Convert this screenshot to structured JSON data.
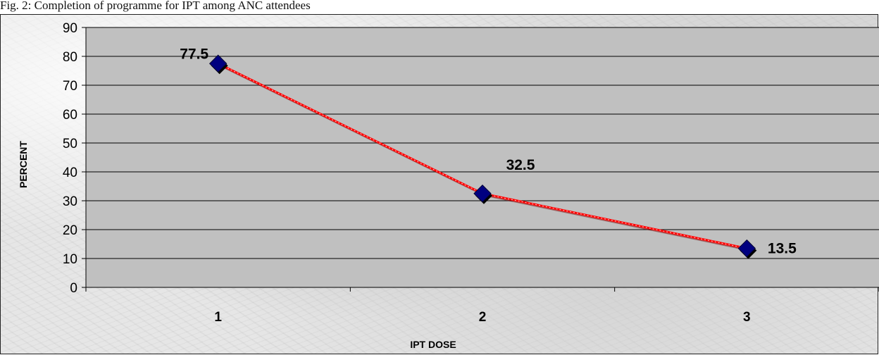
{
  "caption": "Fig. 2: Completion of programme for IPT among ANC attendees",
  "chart_data": {
    "type": "line",
    "title": "",
    "xlabel": "IPT DOSE",
    "ylabel": "PERCENT",
    "categories": [
      "1",
      "2",
      "3"
    ],
    "series": [
      {
        "values": [
          77.5,
          32.5,
          13.5
        ],
        "data_labels": [
          "77.5",
          "32.5",
          "13.5"
        ]
      }
    ],
    "ylim": [
      0,
      90
    ],
    "yticks": [
      0,
      10,
      20,
      30,
      40,
      50,
      60,
      70,
      80,
      90
    ],
    "grid": "horizontal",
    "legend": "none",
    "colors": {
      "plot_background": "#c0c0c0",
      "line": "#ff0000",
      "marker": "#000080",
      "gridline": "#000000"
    }
  }
}
